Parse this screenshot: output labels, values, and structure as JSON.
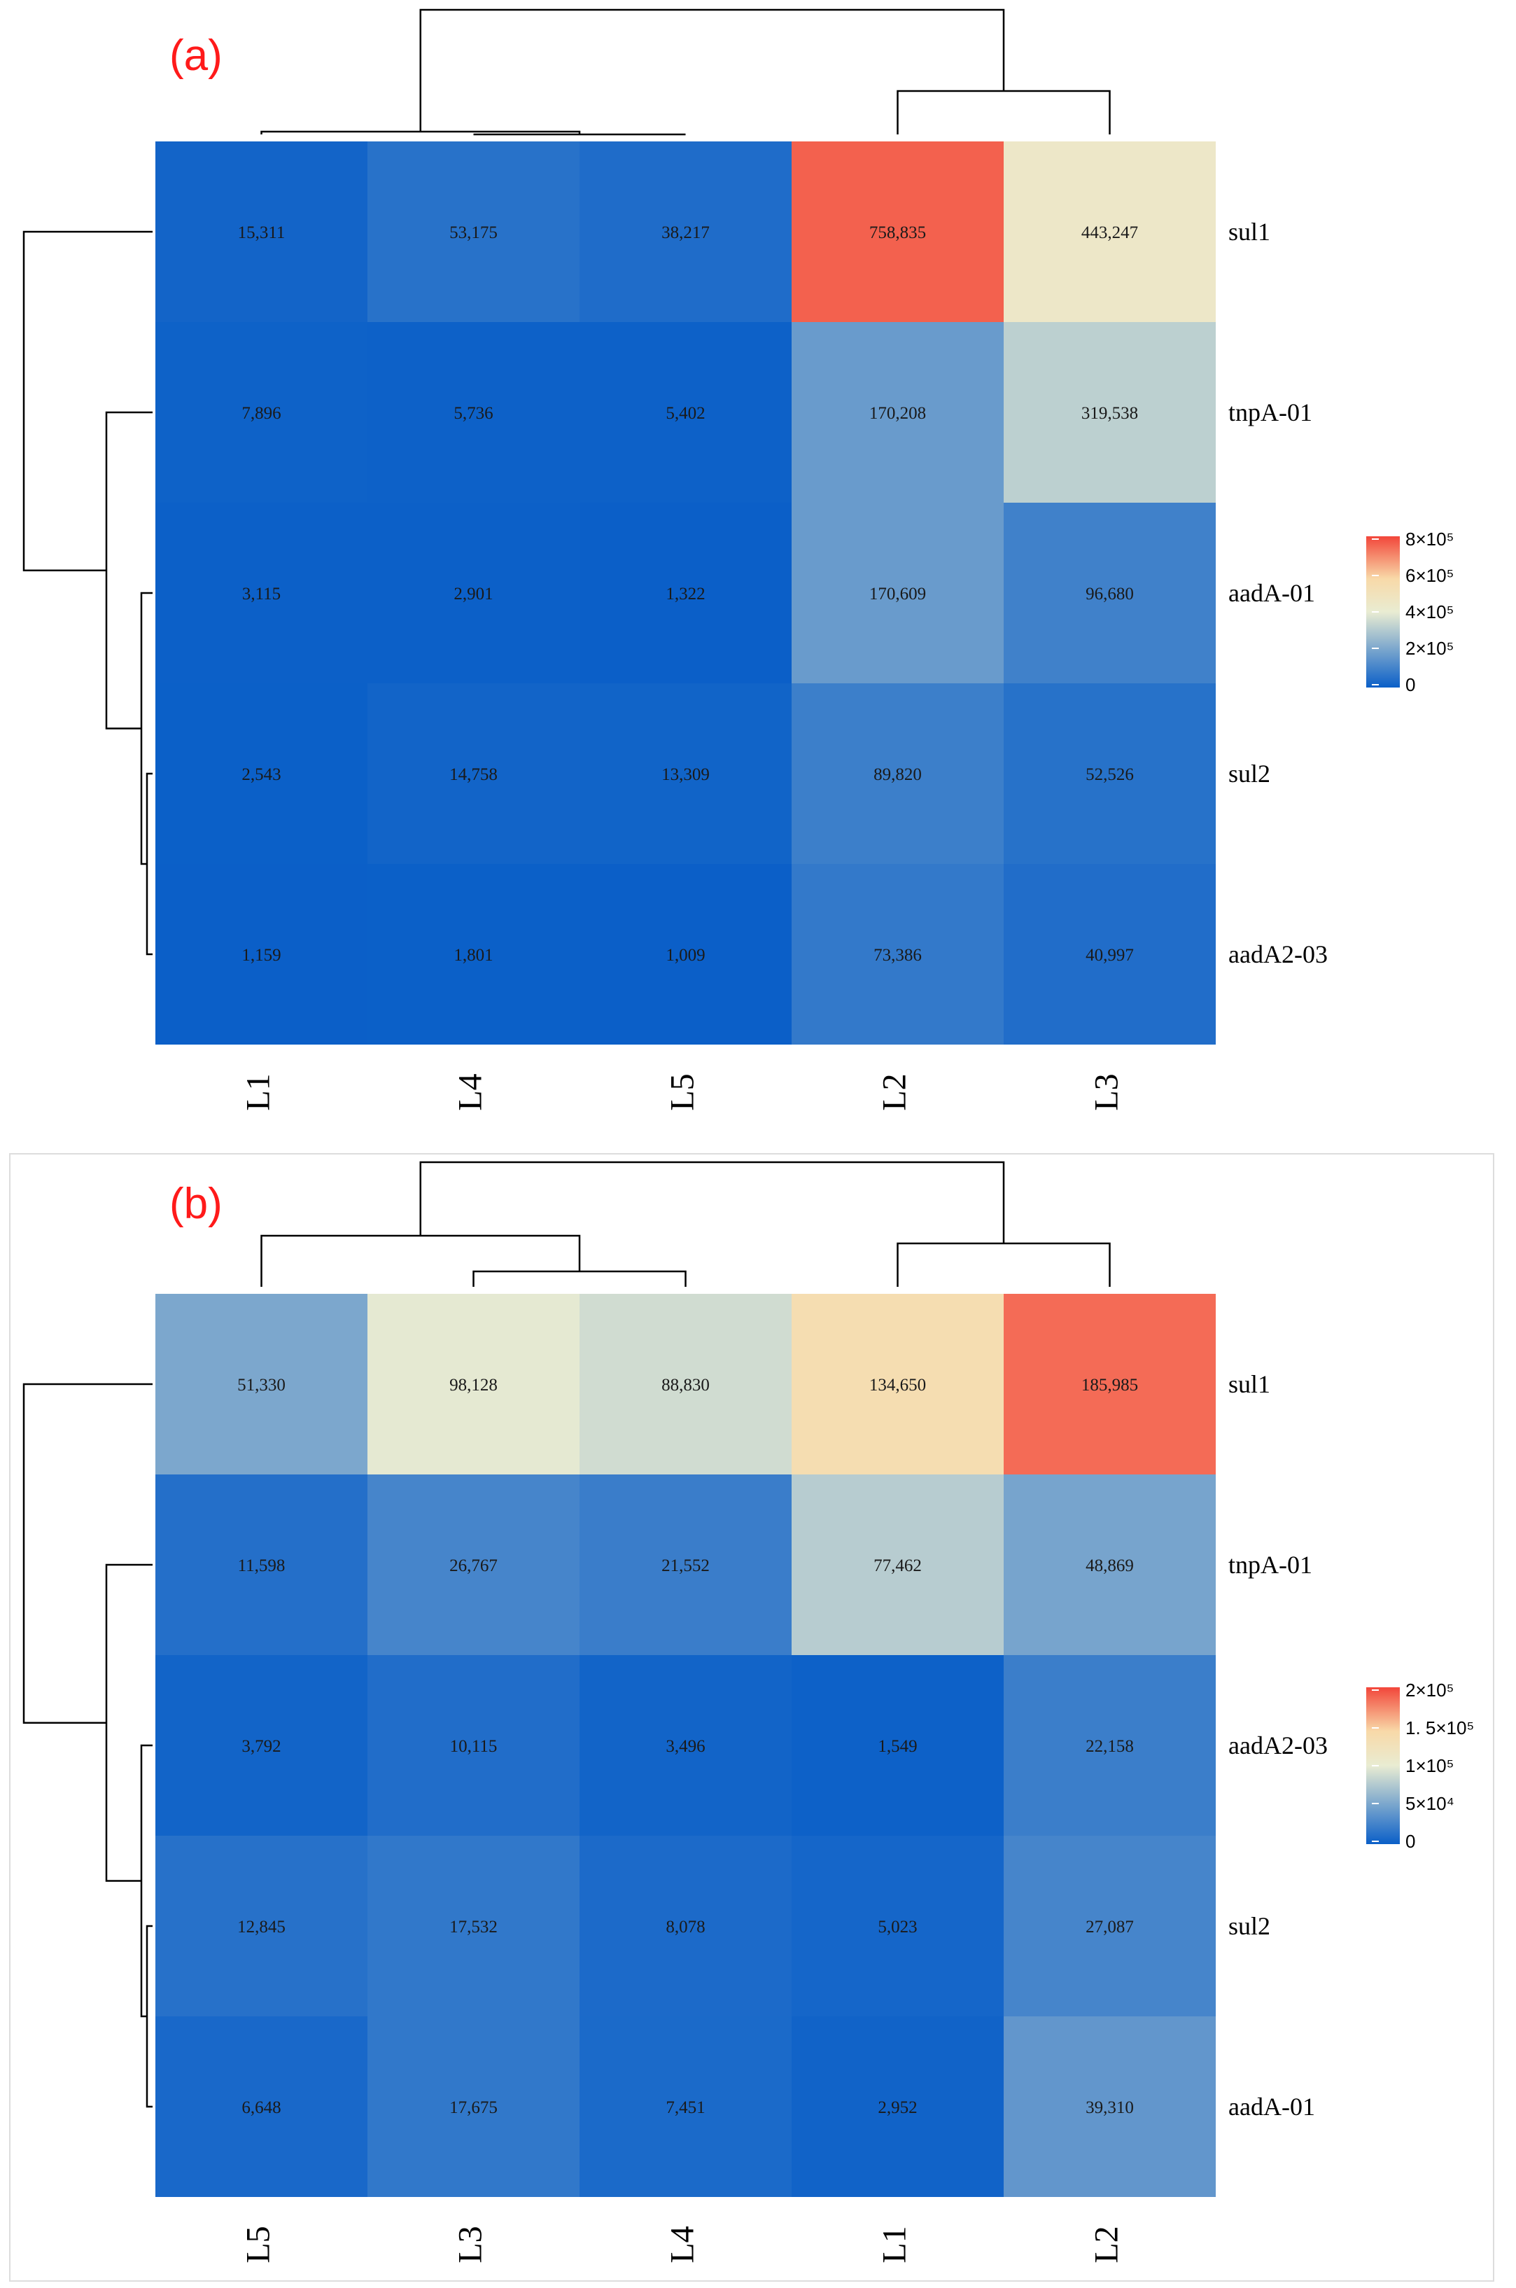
{
  "chart_data": [
    {
      "type": "heatmap",
      "panel_label": "(a)",
      "columns": [
        "L1",
        "L4",
        "L5",
        "L2",
        "L3"
      ],
      "rows": [
        "sul1",
        "tnpA-01",
        "aadA-01",
        "sul2",
        "aadA2-03"
      ],
      "values": [
        [
          15311,
          53175,
          38217,
          758835,
          443247
        ],
        [
          7896,
          5736,
          5402,
          170208,
          319538
        ],
        [
          3115,
          2901,
          1322,
          170609,
          96680
        ],
        [
          2543,
          14758,
          13309,
          89820,
          52526
        ],
        [
          1159,
          1801,
          1009,
          73386,
          40997
        ]
      ],
      "cell_labels": [
        [
          "15,311",
          "53,175",
          "38,217",
          "758,835",
          "443,247"
        ],
        [
          "7,896",
          "5,736",
          "5,402",
          "170,208",
          "319,538"
        ],
        [
          "3,115",
          "2,901",
          "1,322",
          "170,609",
          "96,680"
        ],
        [
          "2,543",
          "14,758",
          "13,309",
          "89,820",
          "52,526"
        ],
        [
          "1,159",
          "1,801",
          "1,009",
          "73,386",
          "40,997"
        ]
      ],
      "color_range": [
        0,
        800000
      ],
      "legend_ticks": [
        {
          "value": 800000,
          "label": "8×10⁵"
        },
        {
          "value": 600000,
          "label": "6×10⁵"
        },
        {
          "value": 400000,
          "label": "4×10⁵"
        },
        {
          "value": 200000,
          "label": "2×10⁵"
        },
        {
          "value": 0,
          "label": "0"
        }
      ],
      "col_dendrogram": "((L1,(L4,L5)),(L2,L3))",
      "row_dendrogram": "(sul1,(tnpA-01,(aadA-01,(sul2,aadA2-03))))"
    },
    {
      "type": "heatmap",
      "panel_label": "(b)",
      "columns": [
        "L5",
        "L3",
        "L4",
        "L1",
        "L2"
      ],
      "rows": [
        "sul1",
        "tnpA-01",
        "aadA2-03",
        "sul2",
        "aadA-01"
      ],
      "values": [
        [
          51330,
          98128,
          88830,
          134650,
          185985
        ],
        [
          11598,
          26767,
          21552,
          77462,
          48869
        ],
        [
          3792,
          10115,
          3496,
          1549,
          22158
        ],
        [
          12845,
          17532,
          8078,
          5023,
          27087
        ],
        [
          6648,
          17675,
          7451,
          2952,
          39310
        ]
      ],
      "cell_labels": [
        [
          "51,330",
          "98,128",
          "88,830",
          "134,650",
          "185,985"
        ],
        [
          "11,598",
          "26,767",
          "21,552",
          "77,462",
          "48,869"
        ],
        [
          "3,792",
          "10,115",
          "3,496",
          "1,549",
          "22,158"
        ],
        [
          "12,845",
          "17,532",
          "8,078",
          "5,023",
          "27,087"
        ],
        [
          "6,648",
          "17,675",
          "7,451",
          "2,952",
          "39,310"
        ]
      ],
      "color_range": [
        0,
        200000
      ],
      "legend_ticks": [
        {
          "value": 200000,
          "label": "2×10⁵"
        },
        {
          "value": 150000,
          "label": "1. 5×10⁵"
        },
        {
          "value": 100000,
          "label": "1×10⁵"
        },
        {
          "value": 50000,
          "label": "5×10⁴"
        },
        {
          "value": 0,
          "label": "0"
        }
      ],
      "col_dendrogram": "((L5,(L3,L4)),(L1,L2))",
      "row_dendrogram": "(sul1,(tnpA-01,(aadA2-03,(sul2,aadA-01))))"
    }
  ],
  "colors": {
    "scale_low": "#0a5fc8",
    "scale_mid": "#e9ecd2",
    "scale_high_light": "#f8d9a8",
    "scale_high": "#f2463a"
  }
}
